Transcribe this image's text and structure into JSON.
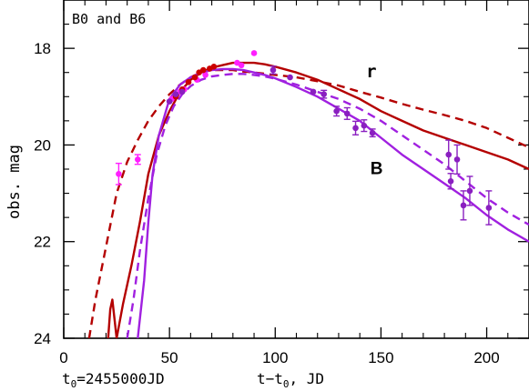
{
  "chart_data": {
    "type": "scatter",
    "title": "",
    "panel_label": "B0 and B6",
    "xlabel": "t−t",
    "xlabel_sub": "0",
    "xlabel_suffix": ", JD",
    "ylabel": "obs. mag",
    "t0_label_prefix": "t",
    "t0_label_sub": "0",
    "t0_label_value": "=2455000JD",
    "xlim": [
      0,
      220
    ],
    "ylim": [
      24,
      17
    ],
    "y_inverted": true,
    "x_ticks": [
      0,
      50,
      100,
      150,
      200
    ],
    "y_ticks": [
      18,
      20,
      22,
      24
    ],
    "colors": {
      "r_model": "#b40000",
      "r_points": "#cc0000",
      "early_points": "#ff1fff",
      "B_model": "#a020e0",
      "B_points": "#8a1fc0"
    },
    "band_labels": [
      {
        "text": "r",
        "x": 143,
        "y": 18.6,
        "color": "#b40000"
      },
      {
        "text": "B",
        "x": 145,
        "y": 20.6,
        "color": "#a020e0"
      }
    ],
    "series": [
      {
        "kind": "line",
        "style": "solid",
        "color": "#b40000",
        "x": [
          21,
          22,
          23,
          25,
          28,
          32,
          36,
          40,
          45,
          50,
          55,
          60,
          65,
          70,
          75,
          80,
          85,
          90,
          95,
          100,
          110,
          120,
          130,
          140,
          150,
          160,
          170,
          180,
          190,
          200,
          210,
          220
        ],
        "y": [
          24.0,
          23.4,
          23.2,
          24.0,
          23.3,
          22.5,
          21.6,
          20.6,
          19.8,
          19.3,
          18.9,
          18.65,
          18.5,
          18.4,
          18.35,
          18.3,
          18.3,
          18.3,
          18.33,
          18.38,
          18.5,
          18.65,
          18.85,
          19.05,
          19.3,
          19.5,
          19.7,
          19.85,
          20.0,
          20.15,
          20.3,
          20.5
        ]
      },
      {
        "kind": "line",
        "style": "dashed",
        "color": "#b40000",
        "x": [
          12,
          15,
          20,
          25,
          30,
          35,
          40,
          45,
          50,
          55,
          60,
          65,
          70,
          75,
          80,
          85,
          90,
          100,
          110,
          120,
          130,
          140,
          150,
          160,
          170,
          180,
          190,
          200,
          210,
          220
        ],
        "y": [
          24.0,
          23.2,
          22.1,
          21.0,
          20.35,
          19.9,
          19.5,
          19.2,
          18.95,
          18.75,
          18.6,
          18.5,
          18.45,
          18.45,
          18.45,
          18.48,
          18.5,
          18.55,
          18.6,
          18.68,
          18.77,
          18.9,
          19.02,
          19.15,
          19.27,
          19.38,
          19.5,
          19.65,
          19.85,
          20.05
        ]
      },
      {
        "kind": "line",
        "style": "solid",
        "color": "#a020e0",
        "x": [
          35,
          38,
          40,
          42,
          45,
          50,
          55,
          60,
          65,
          70,
          75,
          80,
          85,
          90,
          95,
          100,
          110,
          120,
          130,
          140,
          150,
          160,
          170,
          180,
          190,
          200,
          210,
          220
        ],
        "y": [
          24.0,
          22.8,
          21.6,
          20.6,
          19.8,
          19.05,
          18.75,
          18.6,
          18.5,
          18.45,
          18.43,
          18.43,
          18.45,
          18.5,
          18.55,
          18.62,
          18.8,
          19.0,
          19.25,
          19.5,
          19.85,
          20.2,
          20.5,
          20.8,
          21.1,
          21.45,
          21.75,
          22.0
        ]
      },
      {
        "kind": "line",
        "style": "dashed",
        "color": "#a020e0",
        "x": [
          30,
          33,
          36,
          40,
          44,
          48,
          52,
          56,
          60,
          65,
          70,
          75,
          80,
          85,
          90,
          95,
          100,
          110,
          120,
          130,
          140,
          150,
          160,
          170,
          180,
          190,
          200,
          210,
          220
        ],
        "y": [
          24.0,
          23.2,
          22.2,
          21.1,
          20.2,
          19.6,
          19.2,
          18.95,
          18.78,
          18.65,
          18.58,
          18.55,
          18.53,
          18.53,
          18.55,
          18.58,
          18.63,
          18.75,
          18.9,
          19.05,
          19.25,
          19.5,
          19.8,
          20.1,
          20.4,
          20.75,
          21.1,
          21.4,
          21.65
        ]
      },
      {
        "kind": "points",
        "name": "early",
        "color": "#ff1fff",
        "x": [
          26,
          35,
          51,
          55,
          57,
          63,
          67,
          82,
          84,
          90
        ],
        "y": [
          20.6,
          20.3,
          19.05,
          18.9,
          18.85,
          18.65,
          18.55,
          18.3,
          18.35,
          18.1
        ],
        "err": [
          0.22,
          0.1,
          0.06,
          0.05,
          0.05,
          0.05,
          0.04,
          0.05,
          0.05,
          0.04
        ]
      },
      {
        "kind": "points",
        "name": "r",
        "color": "#cc0000",
        "x": [
          53,
          56,
          59,
          62,
          64,
          66,
          69,
          71
        ],
        "y": [
          19.0,
          18.85,
          18.7,
          18.6,
          18.5,
          18.45,
          18.42,
          18.38
        ],
        "err": [
          0.05,
          0.05,
          0.04,
          0.04,
          0.04,
          0.04,
          0.04,
          0.04
        ]
      },
      {
        "kind": "points",
        "name": "B",
        "color": "#8a1fc0",
        "x": [
          50,
          53,
          56,
          99,
          107,
          118,
          123,
          129,
          134,
          138,
          142,
          146,
          182,
          183,
          186,
          189,
          192,
          201
        ],
        "y": [
          19.1,
          18.95,
          18.9,
          18.45,
          18.6,
          18.9,
          18.95,
          19.3,
          19.35,
          19.65,
          19.6,
          19.75,
          20.2,
          20.75,
          20.3,
          21.25,
          20.95,
          21.3
        ],
        "err": [
          0.05,
          0.05,
          0.05,
          0.08,
          0.05,
          0.04,
          0.08,
          0.1,
          0.12,
          0.14,
          0.12,
          0.08,
          0.3,
          0.16,
          0.3,
          0.3,
          0.3,
          0.35
        ]
      }
    ]
  }
}
